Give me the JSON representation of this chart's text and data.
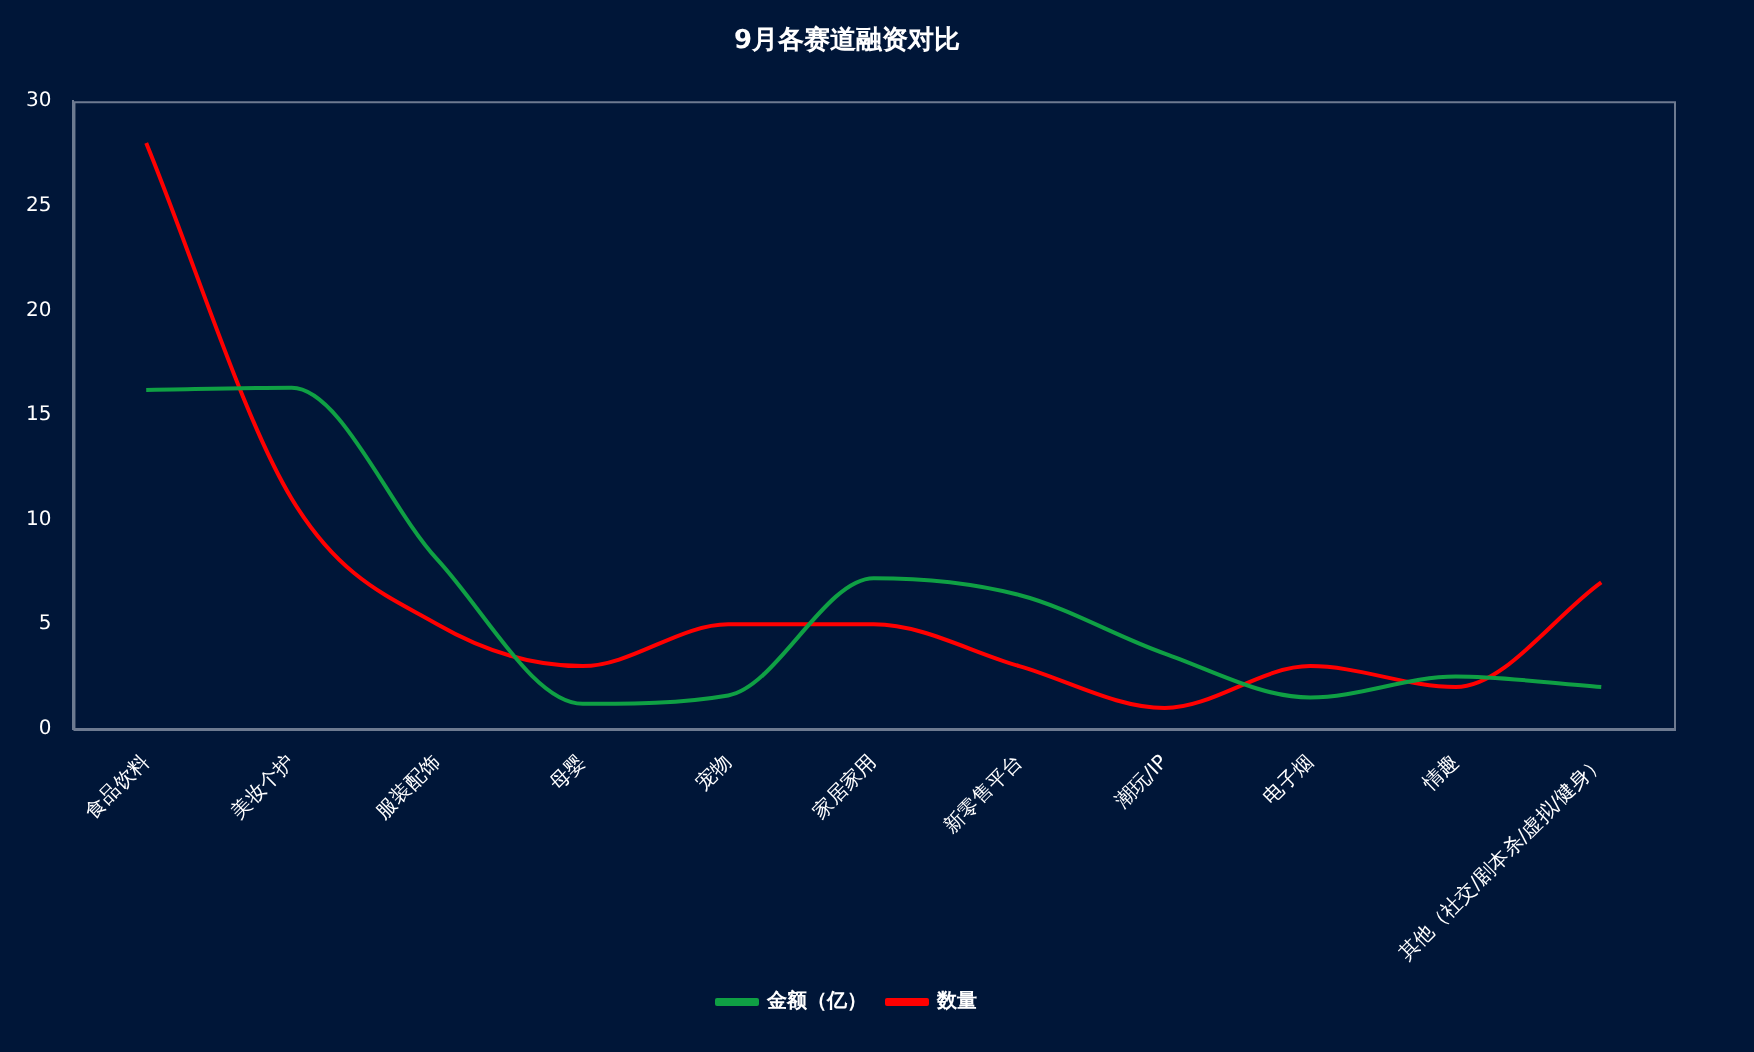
{
  "chart_data": {
    "type": "line",
    "title": "9月各赛道融资对比",
    "categories": [
      "食品饮料",
      "美妆个护",
      "服装配饰",
      "母婴",
      "宠物",
      "家居家用",
      "新零售平台",
      "潮玩/IP",
      "电子烟",
      "情趣",
      "其他（社交/剧本杀/虚拟/健身）"
    ],
    "series": [
      {
        "name": "金额（亿）",
        "color": "#0fa044",
        "values": [
          16.2,
          16.3,
          8.1,
          1.2,
          1.6,
          7.2,
          6.4,
          3.6,
          1.5,
          2.5,
          2.0
        ]
      },
      {
        "name": "数量",
        "color": "#ff0000",
        "values": [
          28,
          11,
          5,
          3,
          5,
          5,
          3,
          1,
          3,
          2,
          7
        ]
      }
    ],
    "ylim": [
      0,
      30
    ],
    "yticks": [
      0,
      5,
      10,
      15,
      20,
      25,
      30
    ],
    "grid": false,
    "legend": "bottom",
    "marker": "none"
  }
}
